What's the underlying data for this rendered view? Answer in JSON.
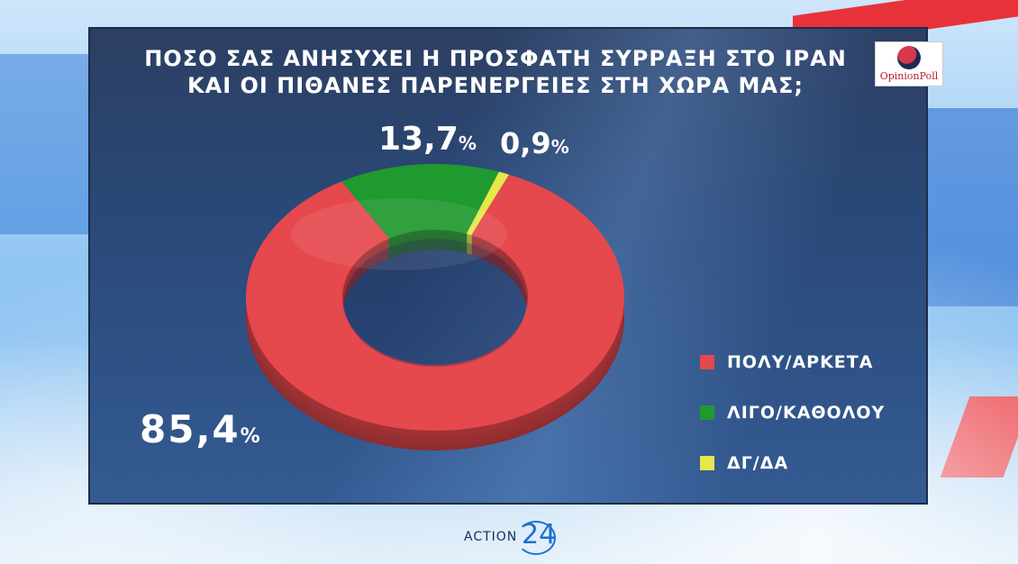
{
  "title_line1": "ΠΟΣΟ ΣΑΣ ΑΝΗΣΥΧΕΙ Η ΠΡΟΣΦΑΤΗ ΣΥΡΡΑΞΗ ΣΤΟ ΙΡΑΝ",
  "title_line2": "ΚΑΙ ΟΙ ΠΙΘΑΝΕΣ ΠΑΡΕΝΕΡΓΕΙΕΣ ΣΤΗ ΧΩΡΑ ΜΑΣ;",
  "logo_text": "OpinionPoll",
  "brand": {
    "text": "ACTION",
    "number": "24"
  },
  "colors": {
    "red": "#e5484d",
    "green": "#1f9a2e",
    "yellow": "#e4e84a"
  },
  "chart_data": {
    "type": "pie",
    "style": "donut",
    "title": "ΠΟΣΟ ΣΑΣ ΑΝΗΣΥΧΕΙ Η ΠΡΟΣΦΑΤΗ ΣΥΡΡΑΞΗ ΣΤΟ ΙΡΑΝ ΚΑΙ ΟΙ ΠΙΘΑΝΕΣ ΠΑΡΕΝΕΡΓΕΙΕΣ ΣΤΗ ΧΩΡΑ ΜΑΣ;",
    "legend_position": "right",
    "unit": "%",
    "slices": [
      {
        "label": "ΠΟΛΥ/ΑΡΚΕΤΑ",
        "value": 85.4,
        "display": "85,4",
        "color": "#e5484d"
      },
      {
        "label": "ΛΙΓΟ/ΚΑΘΟΛΟΥ",
        "value": 13.7,
        "display": "13,7",
        "color": "#1f9a2e"
      },
      {
        "label": "ΔΓ/ΔΑ",
        "value": 0.9,
        "display": "0,9",
        "color": "#e4e84a"
      }
    ]
  }
}
